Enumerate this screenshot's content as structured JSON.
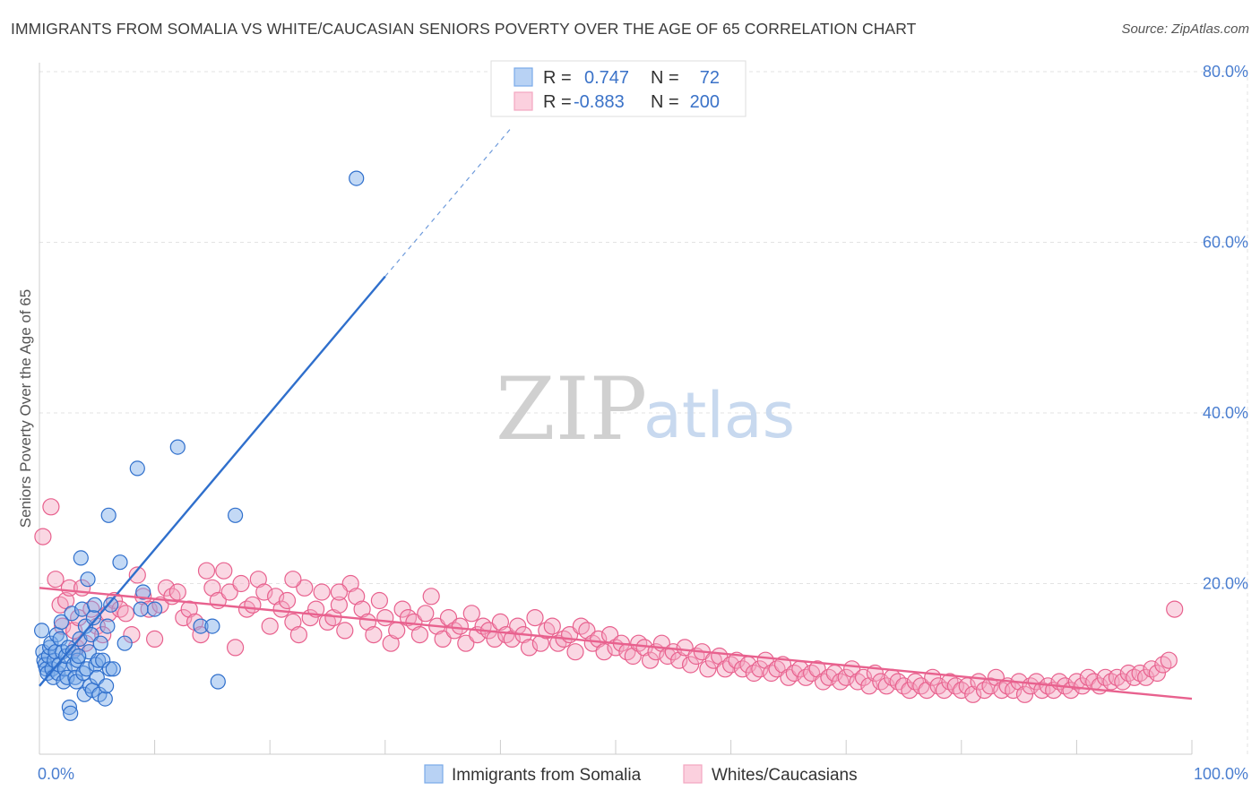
{
  "header": {
    "title": "IMMIGRANTS FROM SOMALIA VS WHITE/CAUCASIAN SENIORS POVERTY OVER THE AGE OF 65 CORRELATION CHART",
    "source": "Source: ZipAtlas.com"
  },
  "watermark": {
    "zip": "ZIP",
    "atlas": "atlas"
  },
  "legend": {
    "r_label": "R =",
    "n_label": "N =",
    "rows": [
      {
        "r": "0.747",
        "n": "72"
      },
      {
        "r": "-0.883",
        "n": "200"
      }
    ]
  },
  "chart_data": {
    "type": "scatter",
    "xlabel": "",
    "ylabel": "Seniors Poverty Over the Age of 65",
    "xlim": [
      0,
      100
    ],
    "ylim": [
      0,
      80
    ],
    "x_tick_labels": [
      "0.0%",
      "100.0%"
    ],
    "y_tick_labels": [
      "20.0%",
      "40.0%",
      "60.0%",
      "80.0%"
    ],
    "y_ticks": [
      20,
      40,
      60,
      80
    ],
    "grid": true,
    "legend_position": "bottom",
    "series": [
      {
        "name": "Immigrants from Somalia",
        "color": "#7aaae8",
        "line_color": "#2f6fcc",
        "R": 0.747,
        "N": 72,
        "trend": {
          "x0": 0,
          "y0": 8.0,
          "x1": 30,
          "y1": 56.0,
          "dash_to_x": 41,
          "dash_to_y": 73.5
        },
        "points": [
          [
            0.2,
            14.5
          ],
          [
            0.3,
            12.0
          ],
          [
            0.4,
            11.0
          ],
          [
            0.5,
            10.5
          ],
          [
            0.6,
            10.0
          ],
          [
            0.7,
            9.5
          ],
          [
            0.8,
            11.5
          ],
          [
            0.9,
            12.5
          ],
          [
            1.0,
            13.0
          ],
          [
            1.1,
            10.0
          ],
          [
            1.2,
            9.0
          ],
          [
            1.3,
            11.0
          ],
          [
            1.4,
            12.0
          ],
          [
            1.5,
            14.0
          ],
          [
            1.6,
            9.5
          ],
          [
            1.7,
            10.5
          ],
          [
            1.8,
            13.5
          ],
          [
            1.9,
            15.5
          ],
          [
            2.0,
            12.0
          ],
          [
            2.1,
            8.5
          ],
          [
            2.2,
            10.0
          ],
          [
            2.3,
            11.5
          ],
          [
            2.4,
            9.0
          ],
          [
            2.5,
            12.5
          ],
          [
            2.6,
            5.5
          ],
          [
            2.7,
            4.8
          ],
          [
            2.8,
            16.5
          ],
          [
            2.9,
            12.0
          ],
          [
            3.0,
            10.5
          ],
          [
            3.1,
            9.0
          ],
          [
            3.2,
            8.5
          ],
          [
            3.3,
            11.0
          ],
          [
            3.5,
            13.5
          ],
          [
            3.6,
            23.0
          ],
          [
            3.7,
            17.0
          ],
          [
            3.8,
            9.5
          ],
          [
            3.9,
            7.0
          ],
          [
            4.0,
            15.0
          ],
          [
            4.1,
            10.0
          ],
          [
            4.2,
            20.5
          ],
          [
            4.3,
            12.0
          ],
          [
            4.4,
            8.0
          ],
          [
            4.5,
            14.0
          ],
          [
            4.6,
            7.5
          ],
          [
            4.7,
            16.0
          ],
          [
            4.8,
            17.5
          ],
          [
            4.9,
            10.5
          ],
          [
            5.0,
            9.0
          ],
          [
            5.1,
            11.0
          ],
          [
            5.2,
            7.0
          ],
          [
            5.3,
            13.0
          ],
          [
            5.5,
            11.0
          ],
          [
            5.7,
            6.5
          ],
          [
            5.8,
            8.0
          ],
          [
            5.9,
            15.0
          ],
          [
            6.0,
            28.0
          ],
          [
            6.1,
            10.0
          ],
          [
            6.2,
            17.5
          ],
          [
            6.4,
            10.0
          ],
          [
            7.0,
            22.5
          ],
          [
            7.4,
            13.0
          ],
          [
            8.5,
            33.5
          ],
          [
            8.8,
            17.0
          ],
          [
            9.0,
            19.0
          ],
          [
            10.0,
            17.0
          ],
          [
            12.0,
            36.0
          ],
          [
            14.0,
            15.0
          ],
          [
            15.0,
            15.0
          ],
          [
            15.5,
            8.5
          ],
          [
            17.0,
            28.0
          ],
          [
            27.5,
            67.5
          ],
          [
            3.4,
            11.5
          ]
        ]
      },
      {
        "name": "Whites/Caucasians",
        "color": "#f4a6c0",
        "line_color": "#e8618e",
        "R": -0.883,
        "N": 200,
        "trend": {
          "x0": 0,
          "y0": 19.5,
          "x1": 100,
          "y1": 6.5
        },
        "points": [
          [
            0.3,
            25.5
          ],
          [
            1.0,
            29.0
          ],
          [
            1.4,
            20.5
          ],
          [
            1.8,
            17.5
          ],
          [
            2.0,
            15.0
          ],
          [
            2.3,
            18.0
          ],
          [
            2.6,
            19.5
          ],
          [
            3.0,
            14.5
          ],
          [
            3.2,
            12.5
          ],
          [
            3.4,
            16.0
          ],
          [
            3.7,
            19.5
          ],
          [
            4.0,
            13.0
          ],
          [
            4.5,
            17.0
          ],
          [
            5.0,
            15.0
          ],
          [
            5.5,
            14.0
          ],
          [
            6.0,
            16.5
          ],
          [
            6.5,
            18.0
          ],
          [
            7.0,
            17.0
          ],
          [
            7.5,
            16.5
          ],
          [
            8.0,
            14.0
          ],
          [
            8.5,
            21.0
          ],
          [
            9.0,
            18.5
          ],
          [
            9.5,
            17.0
          ],
          [
            10.0,
            13.5
          ],
          [
            10.5,
            17.5
          ],
          [
            11.0,
            19.5
          ],
          [
            11.5,
            18.5
          ],
          [
            12.0,
            19.0
          ],
          [
            12.5,
            16.0
          ],
          [
            13.0,
            17.0
          ],
          [
            13.5,
            15.5
          ],
          [
            14.0,
            14.0
          ],
          [
            14.5,
            21.5
          ],
          [
            15.0,
            19.5
          ],
          [
            15.5,
            18.0
          ],
          [
            16.0,
            21.5
          ],
          [
            16.5,
            19.0
          ],
          [
            17.0,
            12.5
          ],
          [
            17.5,
            20.0
          ],
          [
            18.0,
            17.0
          ],
          [
            18.5,
            17.5
          ],
          [
            19.0,
            20.5
          ],
          [
            19.5,
            19.0
          ],
          [
            20.0,
            15.0
          ],
          [
            20.5,
            18.5
          ],
          [
            21.0,
            17.0
          ],
          [
            21.5,
            18.0
          ],
          [
            22.0,
            15.5
          ],
          [
            22.5,
            14.0
          ],
          [
            23.0,
            19.5
          ],
          [
            23.5,
            16.0
          ],
          [
            24.0,
            17.0
          ],
          [
            24.5,
            19.0
          ],
          [
            25.0,
            15.5
          ],
          [
            25.5,
            16.0
          ],
          [
            26.0,
            17.5
          ],
          [
            26.5,
            14.5
          ],
          [
            27.0,
            20.0
          ],
          [
            27.5,
            18.5
          ],
          [
            28.0,
            17.0
          ],
          [
            28.5,
            15.5
          ],
          [
            29.0,
            14.0
          ],
          [
            29.5,
            18.0
          ],
          [
            30.0,
            16.0
          ],
          [
            30.5,
            13.0
          ],
          [
            31.0,
            14.5
          ],
          [
            31.5,
            17.0
          ],
          [
            32.0,
            16.0
          ],
          [
            32.5,
            15.5
          ],
          [
            33.0,
            14.0
          ],
          [
            33.5,
            16.5
          ],
          [
            34.0,
            18.5
          ],
          [
            34.5,
            15.0
          ],
          [
            35.0,
            13.5
          ],
          [
            35.5,
            16.0
          ],
          [
            36.0,
            14.5
          ],
          [
            36.5,
            15.0
          ],
          [
            37.0,
            13.0
          ],
          [
            37.5,
            16.5
          ],
          [
            38.0,
            14.0
          ],
          [
            38.5,
            15.0
          ],
          [
            39.0,
            14.5
          ],
          [
            39.5,
            13.5
          ],
          [
            40.0,
            15.5
          ],
          [
            40.5,
            14.0
          ],
          [
            41.0,
            13.5
          ],
          [
            41.5,
            15.0
          ],
          [
            42.0,
            14.0
          ],
          [
            42.5,
            12.5
          ],
          [
            43.0,
            16.0
          ],
          [
            43.5,
            13.0
          ],
          [
            44.0,
            14.5
          ],
          [
            44.5,
            15.0
          ],
          [
            45.0,
            13.0
          ],
          [
            45.5,
            13.5
          ],
          [
            46.0,
            14.0
          ],
          [
            46.5,
            12.0
          ],
          [
            47.0,
            15.0
          ],
          [
            47.5,
            14.5
          ],
          [
            48.0,
            13.0
          ],
          [
            48.5,
            13.5
          ],
          [
            49.0,
            12.0
          ],
          [
            49.5,
            14.0
          ],
          [
            50.0,
            12.5
          ],
          [
            50.5,
            13.0
          ],
          [
            51.0,
            12.0
          ],
          [
            51.5,
            11.5
          ],
          [
            52.0,
            13.0
          ],
          [
            52.5,
            12.5
          ],
          [
            53.0,
            11.0
          ],
          [
            53.5,
            12.0
          ],
          [
            54.0,
            13.0
          ],
          [
            54.5,
            11.5
          ],
          [
            55.0,
            12.0
          ],
          [
            55.5,
            11.0
          ],
          [
            56.0,
            12.5
          ],
          [
            56.5,
            10.5
          ],
          [
            57.0,
            11.5
          ],
          [
            57.5,
            12.0
          ],
          [
            58.0,
            10.0
          ],
          [
            58.5,
            11.0
          ],
          [
            59.0,
            11.5
          ],
          [
            59.5,
            10.0
          ],
          [
            60.0,
            10.5
          ],
          [
            60.5,
            11.0
          ],
          [
            61.0,
            10.0
          ],
          [
            61.5,
            10.5
          ],
          [
            62.0,
            9.5
          ],
          [
            62.5,
            10.0
          ],
          [
            63.0,
            11.0
          ],
          [
            63.5,
            9.5
          ],
          [
            64.0,
            10.0
          ],
          [
            64.5,
            10.5
          ],
          [
            65.0,
            9.0
          ],
          [
            65.5,
            9.5
          ],
          [
            66.0,
            10.0
          ],
          [
            66.5,
            9.0
          ],
          [
            67.0,
            9.5
          ],
          [
            67.5,
            10.0
          ],
          [
            68.0,
            8.5
          ],
          [
            68.5,
            9.0
          ],
          [
            69.0,
            9.5
          ],
          [
            69.5,
            8.5
          ],
          [
            70.0,
            9.0
          ],
          [
            70.5,
            10.0
          ],
          [
            71.0,
            8.5
          ],
          [
            71.5,
            9.0
          ],
          [
            72.0,
            8.0
          ],
          [
            72.5,
            9.5
          ],
          [
            73.0,
            8.5
          ],
          [
            73.5,
            8.0
          ],
          [
            74.0,
            9.0
          ],
          [
            74.5,
            8.5
          ],
          [
            75.0,
            8.0
          ],
          [
            75.5,
            7.5
          ],
          [
            76.0,
            8.5
          ],
          [
            76.5,
            8.0
          ],
          [
            77.0,
            7.5
          ],
          [
            77.5,
            9.0
          ],
          [
            78.0,
            8.0
          ],
          [
            78.5,
            7.5
          ],
          [
            79.0,
            8.5
          ],
          [
            79.5,
            8.0
          ],
          [
            80.0,
            7.5
          ],
          [
            80.5,
            8.0
          ],
          [
            81.0,
            7.0
          ],
          [
            81.5,
            8.5
          ],
          [
            82.0,
            7.5
          ],
          [
            82.5,
            8.0
          ],
          [
            83.0,
            9.0
          ],
          [
            83.5,
            7.5
          ],
          [
            84.0,
            8.0
          ],
          [
            84.5,
            7.5
          ],
          [
            85.0,
            8.5
          ],
          [
            85.5,
            7.0
          ],
          [
            86.0,
            8.0
          ],
          [
            86.5,
            8.5
          ],
          [
            87.0,
            7.5
          ],
          [
            87.5,
            8.0
          ],
          [
            88.0,
            7.5
          ],
          [
            88.5,
            8.5
          ],
          [
            89.0,
            8.0
          ],
          [
            89.5,
            7.5
          ],
          [
            90.0,
            8.5
          ],
          [
            90.5,
            8.0
          ],
          [
            91.0,
            9.0
          ],
          [
            91.5,
            8.5
          ],
          [
            92.0,
            8.0
          ],
          [
            92.5,
            9.0
          ],
          [
            93.0,
            8.5
          ],
          [
            93.5,
            9.0
          ],
          [
            94.0,
            8.5
          ],
          [
            94.5,
            9.5
          ],
          [
            95.0,
            9.0
          ],
          [
            95.5,
            9.5
          ],
          [
            96.0,
            9.0
          ],
          [
            96.5,
            10.0
          ],
          [
            97.0,
            9.5
          ],
          [
            97.5,
            10.5
          ],
          [
            98.0,
            11.0
          ],
          [
            98.5,
            17.0
          ],
          [
            22.0,
            20.5
          ],
          [
            26.0,
            19.0
          ]
        ]
      }
    ]
  }
}
